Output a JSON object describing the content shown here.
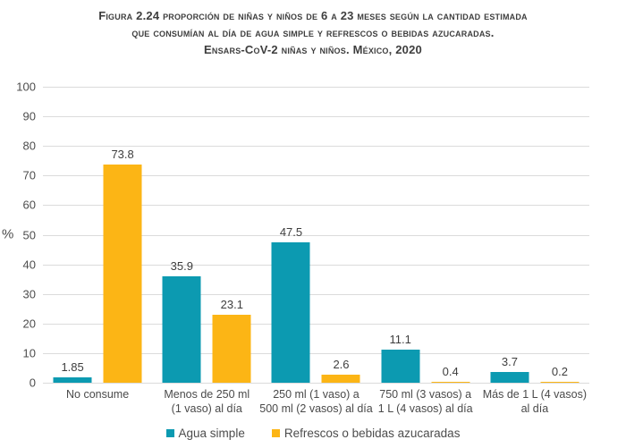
{
  "title": {
    "lines": [
      "Figura 2.24 proporción de niñas y niños de 6 a 23 meses según la cantidad estimada",
      "que consumían al día de agua simple y refrescos o bebidas azucaradas.",
      "Ensars-CoV-2 niñas y niños. México, 2020"
    ]
  },
  "chart_data": {
    "type": "bar",
    "title": "Figura 2.24 Proporción de niñas y niños de 6 a 23 meses según la cantidad estimada que consumían al día de agua simple y refrescos o bebidas azucaradas. Ensars-CoV-2 niñas y niños. México, 2020",
    "ylabel": "%",
    "xlabel": "",
    "ylim": [
      0,
      100
    ],
    "yticks": [
      0,
      10,
      20,
      30,
      40,
      50,
      60,
      70,
      80,
      90,
      100
    ],
    "grid": true,
    "legend_position": "bottom",
    "categories": [
      [
        "No consume"
      ],
      [
        "Menos de 250 ml",
        "(1 vaso) al día"
      ],
      [
        "250 ml (1 vaso) a",
        "500 ml (2 vasos) al día"
      ],
      [
        "750 ml (3 vasos) a",
        "1 L (4 vasos) al día"
      ],
      [
        "Más de 1 L (4 vasos)",
        "al día"
      ]
    ],
    "series": [
      {
        "name": "Agua simple",
        "color": "#0c9ab1",
        "values": [
          1.85,
          35.9,
          47.5,
          11.1,
          3.7
        ],
        "value_labels": [
          "1.85",
          "35.9",
          "47.5",
          "11.1",
          "3.7"
        ]
      },
      {
        "name": "Refrescos o bebidas azucaradas",
        "color": "#fcb515",
        "values": [
          73.8,
          23.1,
          2.6,
          0.4,
          0.2
        ],
        "value_labels": [
          "73.8",
          "23.1",
          "2.6",
          "0.4",
          "0.2"
        ]
      }
    ]
  },
  "colors": {
    "grid": "#dbdbdb",
    "title_text": "#3e3e3e",
    "axis_text": "#4d4d4d",
    "category_text": "#4a4a4a"
  }
}
